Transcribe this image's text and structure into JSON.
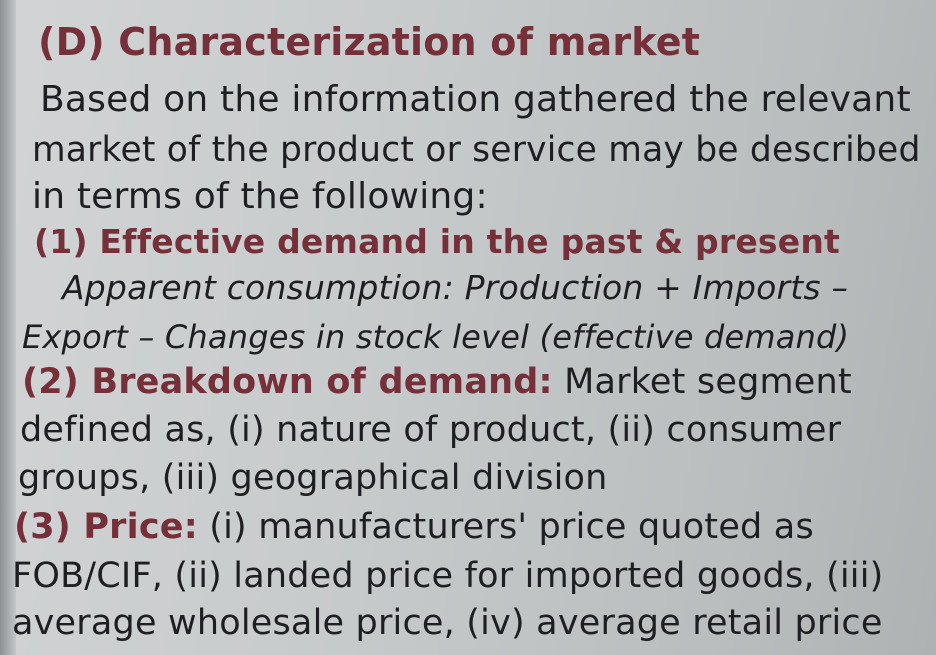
{
  "title": "(D) Characterization of market",
  "intro": [
    "Based on the information gathered the relevant",
    "market of the product or service may be described",
    "in terms of the following:"
  ],
  "item1": {
    "heading": "(1) Effective demand in the past & present",
    "lines": [
      "Apparent consumption: Production + Imports –",
      "Export – Changes in stock level (effective demand)"
    ]
  },
  "item2": {
    "lead": "(2) Breakdown of demand:",
    "rest": " Market segment",
    "lines": [
      "defined as, (i) nature of product,  (ii) consumer",
      "groups, (iii) geographical division"
    ]
  },
  "item3": {
    "lead": "(3) Price:",
    "rest": " (i) manufacturers' price quoted as",
    "lines": [
      "FOB/CIF, (ii) landed price for imported goods, (iii)",
      "average wholesale price, (iv) average retail price"
    ]
  }
}
